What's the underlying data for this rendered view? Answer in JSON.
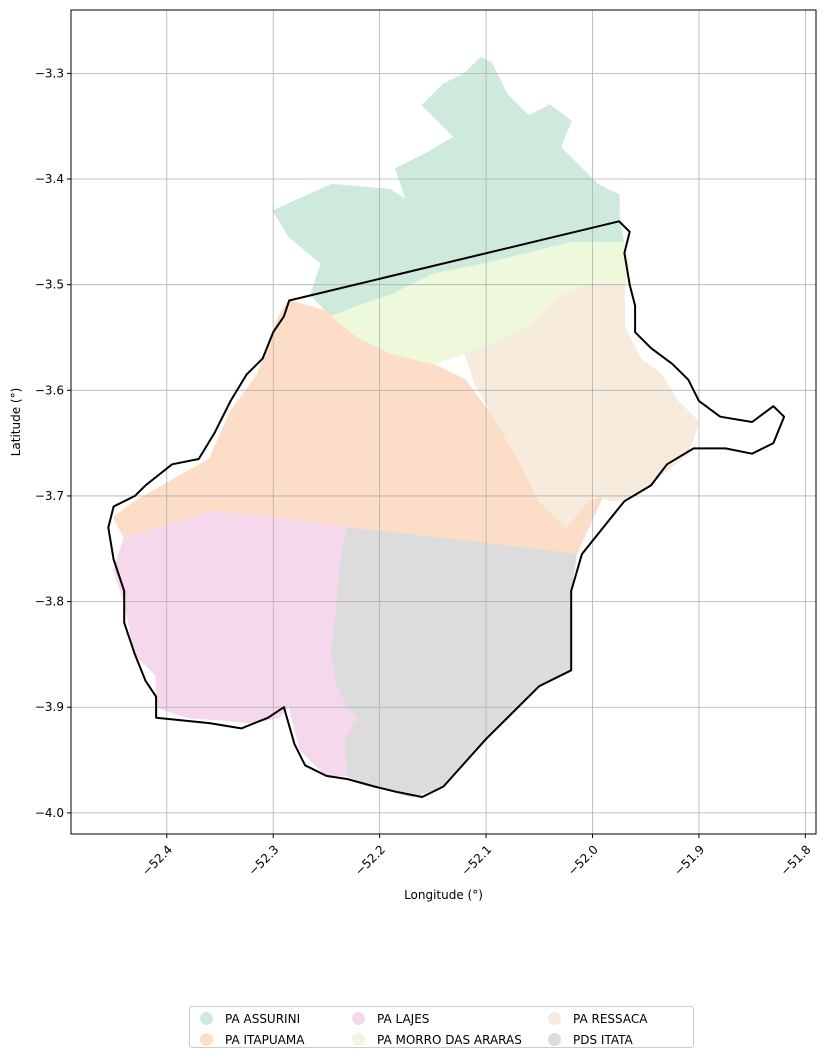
{
  "chart_data": {
    "type": "map",
    "title": "",
    "xlabel": "Longitude (°)",
    "ylabel": "Latitude (°)",
    "xlim": [
      -52.49,
      -51.79
    ],
    "ylim": [
      -4.02,
      -3.24
    ],
    "xticks": [
      -52.4,
      -52.3,
      -52.2,
      -52.1,
      -52.0,
      -51.9,
      -51.8
    ],
    "xtick_labels": [
      "−52.4",
      "−52.3",
      "−52.2",
      "−52.1",
      "−52.0",
      "−51.9",
      "−51.8"
    ],
    "yticks": [
      -3.3,
      -3.4,
      -3.5,
      -3.6,
      -3.7,
      -3.8,
      -3.9,
      -4.0
    ],
    "ytick_labels": [
      "−3.3",
      "−3.4",
      "−3.5",
      "−3.6",
      "−3.7",
      "−3.8",
      "−3.9",
      "−4.0"
    ],
    "grid": true,
    "legend_position": "bottom-center",
    "legend_columns": 3,
    "regions": [
      {
        "name": "PA ASSURINI",
        "color": "#cdeadc",
        "coords": [
          [
            -52.245,
            -3.53
          ],
          [
            -52.265,
            -3.51
          ],
          [
            -52.255,
            -3.48
          ],
          [
            -52.285,
            -3.455
          ],
          [
            -52.3,
            -3.43
          ],
          [
            -52.245,
            -3.405
          ],
          [
            -52.19,
            -3.41
          ],
          [
            -52.175,
            -3.42
          ],
          [
            -52.185,
            -3.39
          ],
          [
            -52.155,
            -3.375
          ],
          [
            -52.13,
            -3.36
          ],
          [
            -52.16,
            -3.33
          ],
          [
            -52.14,
            -3.31
          ],
          [
            -52.12,
            -3.3
          ],
          [
            -52.105,
            -3.285
          ],
          [
            -52.095,
            -3.29
          ],
          [
            -52.08,
            -3.32
          ],
          [
            -52.06,
            -3.34
          ],
          [
            -52.04,
            -3.33
          ],
          [
            -52.02,
            -3.345
          ],
          [
            -52.03,
            -3.37
          ],
          [
            -52.01,
            -3.39
          ],
          [
            -51.995,
            -3.405
          ],
          [
            -51.975,
            -3.415
          ],
          [
            -51.975,
            -3.435
          ],
          [
            -51.97,
            -3.465
          ],
          [
            -52.01,
            -3.47
          ],
          [
            -52.06,
            -3.47
          ],
          [
            -52.1,
            -3.48
          ],
          [
            -52.15,
            -3.49
          ],
          [
            -52.19,
            -3.51
          ],
          [
            -52.22,
            -3.52
          ]
        ]
      },
      {
        "name": "PA ITAPUAMA",
        "color": "#fcddc7",
        "coords": [
          [
            -52.285,
            -3.515
          ],
          [
            -52.25,
            -3.525
          ],
          [
            -52.22,
            -3.55
          ],
          [
            -52.19,
            -3.565
          ],
          [
            -52.15,
            -3.575
          ],
          [
            -52.12,
            -3.59
          ],
          [
            -52.09,
            -3.63
          ],
          [
            -52.07,
            -3.665
          ],
          [
            -52.05,
            -3.705
          ],
          [
            -52.025,
            -3.73
          ],
          [
            -52.005,
            -3.705
          ],
          [
            -51.99,
            -3.7
          ],
          [
            -52.015,
            -3.755
          ],
          [
            -52.1,
            -3.745
          ],
          [
            -52.2,
            -3.735
          ],
          [
            -52.3,
            -3.72
          ],
          [
            -52.36,
            -3.715
          ],
          [
            -52.44,
            -3.74
          ],
          [
            -52.45,
            -3.72
          ],
          [
            -52.43,
            -3.705
          ],
          [
            -52.395,
            -3.685
          ],
          [
            -52.36,
            -3.665
          ],
          [
            -52.34,
            -3.62
          ],
          [
            -52.315,
            -3.585
          ],
          [
            -52.305,
            -3.56
          ],
          [
            -52.295,
            -3.53
          ]
        ]
      },
      {
        "name": "PA LAJES",
        "color": "#f5d8ec",
        "coords": [
          [
            -52.44,
            -3.74
          ],
          [
            -52.36,
            -3.715
          ],
          [
            -52.3,
            -3.72
          ],
          [
            -52.23,
            -3.73
          ],
          [
            -52.235,
            -3.75
          ],
          [
            -52.24,
            -3.8
          ],
          [
            -52.245,
            -3.85
          ],
          [
            -52.24,
            -3.88
          ],
          [
            -52.23,
            -3.9
          ],
          [
            -52.22,
            -3.91
          ],
          [
            -52.232,
            -3.93
          ],
          [
            -52.23,
            -3.965
          ],
          [
            -52.25,
            -3.965
          ],
          [
            -52.275,
            -3.94
          ],
          [
            -52.285,
            -3.9
          ],
          [
            -52.295,
            -3.91
          ],
          [
            -52.32,
            -3.915
          ],
          [
            -52.35,
            -3.912
          ],
          [
            -52.38,
            -3.91
          ],
          [
            -52.41,
            -3.9
          ],
          [
            -52.41,
            -3.87
          ],
          [
            -52.43,
            -3.85
          ],
          [
            -52.44,
            -3.8
          ],
          [
            -52.45,
            -3.77
          ]
        ]
      },
      {
        "name": "PA MORRO DAS ARARAS",
        "color": "#eef9db",
        "coords": [
          [
            -52.245,
            -3.53
          ],
          [
            -52.22,
            -3.52
          ],
          [
            -52.19,
            -3.51
          ],
          [
            -52.15,
            -3.49
          ],
          [
            -52.1,
            -3.48
          ],
          [
            -52.06,
            -3.47
          ],
          [
            -52.02,
            -3.46
          ],
          [
            -51.97,
            -3.46
          ],
          [
            -51.965,
            -3.48
          ],
          [
            -51.97,
            -3.5
          ],
          [
            -52.0,
            -3.5
          ],
          [
            -52.03,
            -3.51
          ],
          [
            -52.06,
            -3.54
          ],
          [
            -52.09,
            -3.555
          ],
          [
            -52.12,
            -3.565
          ],
          [
            -52.15,
            -3.575
          ],
          [
            -52.19,
            -3.565
          ],
          [
            -52.22,
            -3.55
          ]
        ]
      },
      {
        "name": "PA RESSACA",
        "color": "#f6ebdd",
        "coords": [
          [
            -52.12,
            -3.565
          ],
          [
            -52.09,
            -3.555
          ],
          [
            -52.06,
            -3.54
          ],
          [
            -52.03,
            -3.51
          ],
          [
            -52.0,
            -3.5
          ],
          [
            -51.97,
            -3.5
          ],
          [
            -51.97,
            -3.54
          ],
          [
            -51.955,
            -3.57
          ],
          [
            -51.935,
            -3.585
          ],
          [
            -51.92,
            -3.61
          ],
          [
            -51.9,
            -3.63
          ],
          [
            -51.91,
            -3.66
          ],
          [
            -51.935,
            -3.68
          ],
          [
            -51.96,
            -3.7
          ],
          [
            -51.98,
            -3.705
          ],
          [
            -52.0,
            -3.7
          ],
          [
            -52.025,
            -3.73
          ],
          [
            -52.05,
            -3.705
          ],
          [
            -52.07,
            -3.665
          ],
          [
            -52.09,
            -3.63
          ],
          [
            -52.11,
            -3.595
          ]
        ]
      },
      {
        "name": "PDS ITATA",
        "color": "#dcdcdc",
        "coords": [
          [
            -52.23,
            -3.73
          ],
          [
            -52.1,
            -3.745
          ],
          [
            -52.015,
            -3.755
          ],
          [
            -52.02,
            -3.79
          ],
          [
            -52.02,
            -3.84
          ],
          [
            -52.02,
            -3.865
          ],
          [
            -52.05,
            -3.88
          ],
          [
            -52.1,
            -3.93
          ],
          [
            -52.14,
            -3.975
          ],
          [
            -52.17,
            -3.985
          ],
          [
            -52.205,
            -3.975
          ],
          [
            -52.23,
            -3.965
          ],
          [
            -52.232,
            -3.93
          ],
          [
            -52.22,
            -3.91
          ],
          [
            -52.23,
            -3.9
          ],
          [
            -52.24,
            -3.88
          ],
          [
            -52.245,
            -3.85
          ],
          [
            -52.24,
            -3.8
          ],
          [
            -52.235,
            -3.75
          ]
        ]
      }
    ],
    "boundary": {
      "name": "municipality boundary",
      "color": "#000000",
      "coords": [
        [
          -52.285,
          -3.515
        ],
        [
          -51.975,
          -3.44
        ],
        [
          -51.965,
          -3.45
        ],
        [
          -51.97,
          -3.47
        ],
        [
          -51.965,
          -3.5
        ],
        [
          -51.96,
          -3.52
        ],
        [
          -51.96,
          -3.545
        ],
        [
          -51.945,
          -3.56
        ],
        [
          -51.925,
          -3.575
        ],
        [
          -51.91,
          -3.59
        ],
        [
          -51.9,
          -3.61
        ],
        [
          -51.88,
          -3.625
        ],
        [
          -51.85,
          -3.63
        ],
        [
          -51.83,
          -3.615
        ],
        [
          -51.82,
          -3.625
        ],
        [
          -51.83,
          -3.65
        ],
        [
          -51.85,
          -3.66
        ],
        [
          -51.875,
          -3.655
        ],
        [
          -51.905,
          -3.655
        ],
        [
          -51.93,
          -3.67
        ],
        [
          -51.945,
          -3.69
        ],
        [
          -51.97,
          -3.705
        ],
        [
          -51.99,
          -3.73
        ],
        [
          -52.01,
          -3.755
        ],
        [
          -52.02,
          -3.79
        ],
        [
          -52.02,
          -3.84
        ],
        [
          -52.02,
          -3.865
        ],
        [
          -52.05,
          -3.88
        ],
        [
          -52.1,
          -3.93
        ],
        [
          -52.14,
          -3.975
        ],
        [
          -52.16,
          -3.985
        ],
        [
          -52.185,
          -3.98
        ],
        [
          -52.205,
          -3.975
        ],
        [
          -52.23,
          -3.968
        ],
        [
          -52.25,
          -3.965
        ],
        [
          -52.27,
          -3.955
        ],
        [
          -52.28,
          -3.935
        ],
        [
          -52.29,
          -3.9
        ],
        [
          -52.305,
          -3.91
        ],
        [
          -52.33,
          -3.92
        ],
        [
          -52.36,
          -3.915
        ],
        [
          -52.41,
          -3.91
        ],
        [
          -52.41,
          -3.89
        ],
        [
          -52.42,
          -3.875
        ],
        [
          -52.43,
          -3.85
        ],
        [
          -52.44,
          -3.82
        ],
        [
          -52.44,
          -3.79
        ],
        [
          -52.45,
          -3.76
        ],
        [
          -52.455,
          -3.73
        ],
        [
          -52.45,
          -3.71
        ],
        [
          -52.43,
          -3.7
        ],
        [
          -52.42,
          -3.69
        ],
        [
          -52.395,
          -3.67
        ],
        [
          -52.37,
          -3.665
        ],
        [
          -52.355,
          -3.64
        ],
        [
          -52.34,
          -3.61
        ],
        [
          -52.325,
          -3.585
        ],
        [
          -52.31,
          -3.57
        ],
        [
          -52.3,
          -3.545
        ],
        [
          -52.29,
          -3.53
        ],
        [
          -52.285,
          -3.515
        ]
      ]
    }
  },
  "legend": {
    "items": [
      {
        "label": "PA ASSURINI",
        "color": "#cdeadc"
      },
      {
        "label": "PA MORRO DAS ARARAS",
        "color": "#eef9db"
      },
      {
        "label": "PA LAJES",
        "color": "#f5d8ec"
      },
      {
        "label": "PA RESSACA",
        "color": "#f6ebdd"
      },
      {
        "label": "PA ITAPUAMA",
        "color": "#fcddc7"
      },
      {
        "label": "PDS ITATA",
        "color": "#dcdcdc"
      }
    ]
  }
}
